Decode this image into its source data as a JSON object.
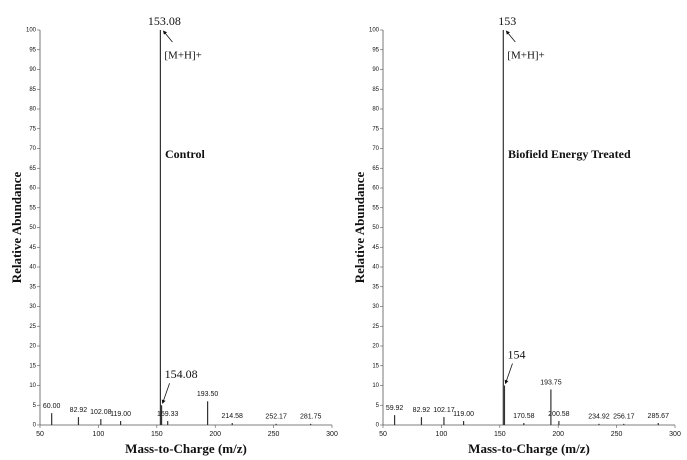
{
  "chart_data": [
    {
      "type": "stem",
      "title": "Control",
      "xlabel": "Mass-to-Charge (m/z)",
      "ylabel": "Relative Abundance",
      "annotation": "[M+H]+",
      "color": "#333333",
      "x": [
        60.0,
        82.92,
        102.08,
        119.0,
        153.08,
        154.08,
        159.33,
        193.5,
        214.58,
        252.17,
        281.75
      ],
      "x_labels": [
        "60.00",
        "82.92",
        "102.08",
        "119.00",
        "153.08",
        "154.08",
        "159.33",
        "193.50",
        "214.58",
        "252.17",
        "281.75"
      ],
      "values": [
        3,
        2,
        1.5,
        1,
        100,
        5,
        1,
        6,
        0.5,
        0.3,
        0.3
      ],
      "xlim": [
        50,
        300
      ],
      "xticks": [
        50,
        100,
        150,
        200,
        250,
        300
      ],
      "ylim": [
        0,
        100
      ],
      "yticks": [
        0,
        5,
        10,
        15,
        20,
        25,
        30,
        35,
        40,
        45,
        50,
        55,
        60,
        65,
        70,
        75,
        80,
        85,
        90,
        95,
        100
      ]
    },
    {
      "type": "stem",
      "title": "Biofield Energy Treated",
      "xlabel": "Mass-to-Charge (m/z)",
      "ylabel": "Relative Abundance",
      "annotation": "[M+H]+",
      "color": "#333333",
      "x": [
        59.92,
        82.92,
        102.17,
        119.0,
        153,
        154,
        170.58,
        193.75,
        200.58,
        234.92,
        256.17,
        285.67
      ],
      "x_labels": [
        "59.92",
        "82.92",
        "102.17",
        "119.00",
        "153",
        "154",
        "170.58",
        "193.75",
        "200.58",
        "234.92",
        "256.17",
        "285.67"
      ],
      "values": [
        2.5,
        2,
        2,
        1,
        100,
        10,
        0.5,
        9,
        1,
        0.3,
        0.3,
        0.5
      ],
      "xlim": [
        50,
        300
      ],
      "xticks": [
        50,
        100,
        150,
        200,
        250,
        300
      ],
      "ylim": [
        0,
        100
      ],
      "yticks": [
        0,
        5,
        10,
        15,
        20,
        25,
        30,
        35,
        40,
        45,
        50,
        55,
        60,
        65,
        70,
        75,
        80,
        85,
        90,
        95,
        100
      ]
    }
  ]
}
